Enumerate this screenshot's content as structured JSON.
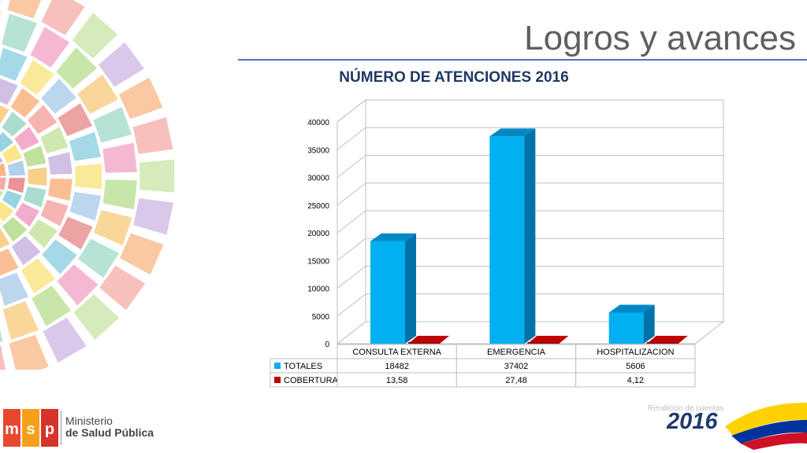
{
  "slide": {
    "title": "Logros y avances"
  },
  "chart_data": {
    "type": "bar",
    "title": "NÚMERO DE ATENCIONES 2016",
    "categories": [
      "CONSULTA EXTERNA",
      "EMERGENCIA",
      "HOSPITALIZACION"
    ],
    "series": [
      {
        "name": "TOTALES",
        "values": [
          18482,
          37402,
          5606
        ],
        "labels": [
          "18482",
          "37402",
          "5606"
        ],
        "color": "#00b0f0"
      },
      {
        "name": "COBERTURA",
        "values": [
          13.58,
          27.48,
          4.12
        ],
        "labels": [
          "13,58",
          "27,48",
          "4,12"
        ],
        "color": "#c00000"
      }
    ],
    "ylim": [
      0,
      40000
    ],
    "yticks": [
      "0",
      "5000",
      "10000",
      "15000",
      "20000",
      "25000",
      "30000",
      "35000",
      "40000"
    ],
    "grid": true,
    "legend": "data-table",
    "style": "3d-column"
  },
  "footer": {
    "ministry_line1": "Ministerio",
    "ministry_line2": "de Salud Pública",
    "report_label": "Rendición de cuentas",
    "report_year": "2016",
    "flag_colors": [
      "#ffd100",
      "#0033a0",
      "#ce1126"
    ]
  }
}
